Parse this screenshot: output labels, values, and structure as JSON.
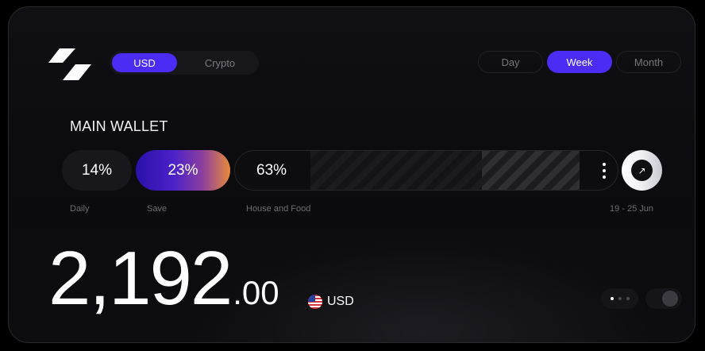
{
  "header": {
    "currency_tabs": [
      {
        "label": "USD",
        "active": true
      },
      {
        "label": "Crypto",
        "active": false
      }
    ],
    "period_tabs": [
      {
        "label": "Day",
        "active": false
      },
      {
        "label": "Week",
        "active": true
      },
      {
        "label": "Month",
        "active": false
      }
    ]
  },
  "wallet": {
    "title": "MAIN WALLET",
    "segments": [
      {
        "label": "Daily",
        "percent": "14%"
      },
      {
        "label": "Save",
        "percent": "23%"
      },
      {
        "label": "House and Food",
        "percent": "63%"
      }
    ],
    "date_range": "19 - 25 Jun",
    "more_icon": "vertical-dots-icon",
    "open_icon": "arrow-up-right-icon"
  },
  "balance": {
    "whole": "2,192",
    "cents": ".00",
    "currency": "USD",
    "flag_icon": "us-flag-icon"
  },
  "colors": {
    "accent": "#4a2cf5",
    "save_gradient_end": "#e88a3a"
  }
}
